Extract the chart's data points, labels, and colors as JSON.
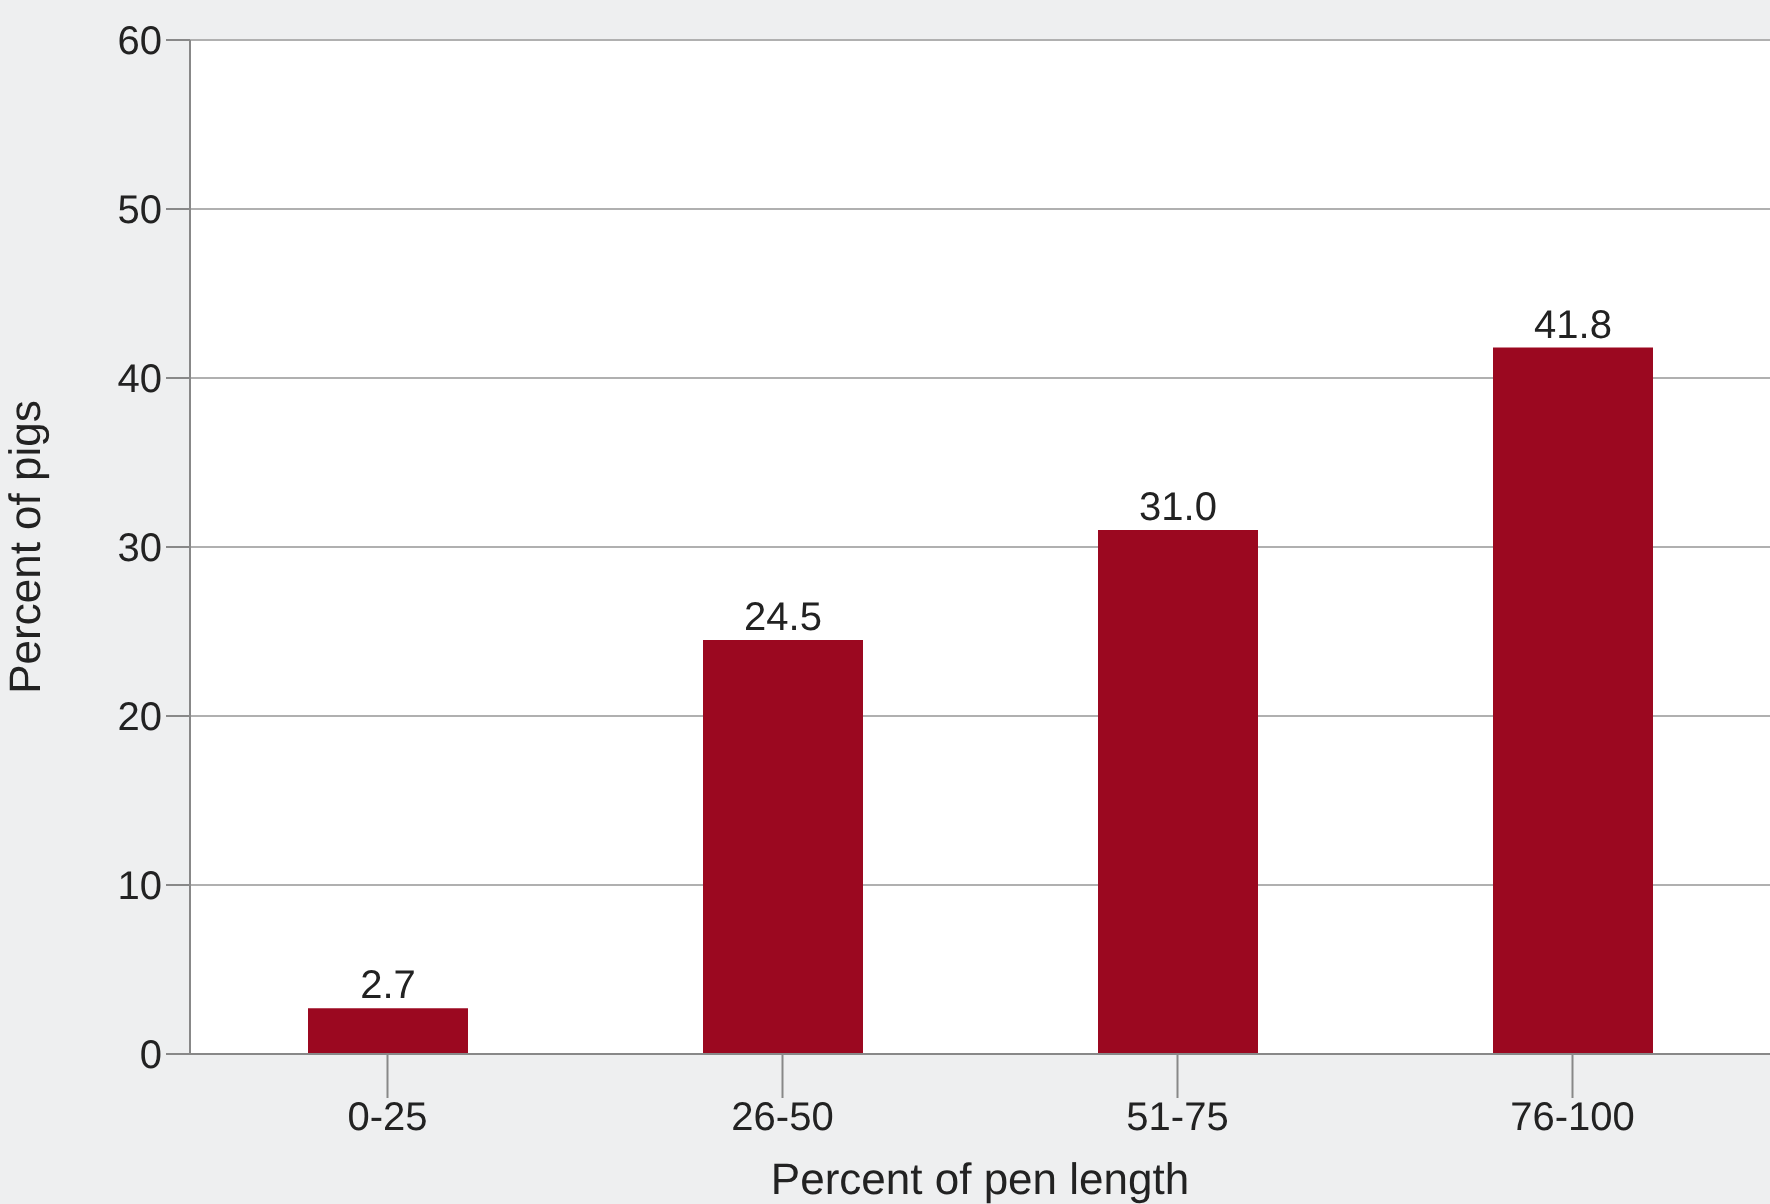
{
  "chart_data": {
    "type": "bar",
    "xlabel": "Percent of pen length",
    "ylabel": "Percent of pigs",
    "categories": [
      "0-25",
      "26-50",
      "51-75",
      "76-100"
    ],
    "values": [
      2.7,
      24.5,
      31.0,
      41.8
    ],
    "value_labels": [
      "2.7",
      "24.5",
      "31.0",
      "41.8"
    ],
    "color": "#9b0820",
    "ylim": [
      0,
      60
    ],
    "yticks": [
      0,
      10,
      20,
      30,
      40,
      50,
      60
    ],
    "grid": "y"
  }
}
